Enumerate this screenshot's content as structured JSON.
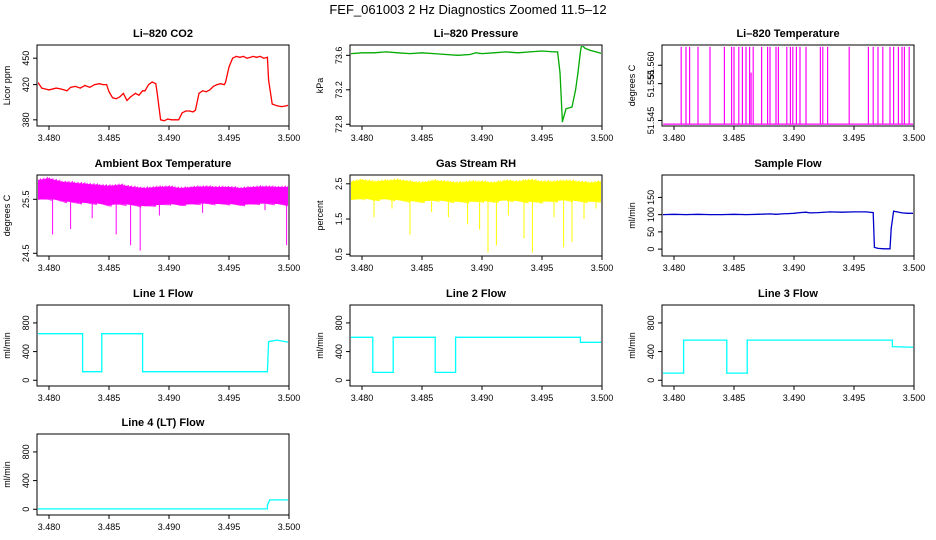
{
  "figure": {
    "title": "FEF_061003  2 Hz Diagnostics Zoomed 11.5–12"
  },
  "chart_data": [
    {
      "type": "line",
      "title": "Li–820 CO2",
      "ylabel": "Licor ppm",
      "color": "#ff0000",
      "xlim": [
        3.479,
        3.5
      ],
      "ylim": [
        373,
        465
      ],
      "xticks": [
        3.48,
        3.485,
        3.49,
        3.495,
        3.5
      ],
      "xtick_labels": [
        "3.480",
        "3.485",
        "3.490",
        "3.495",
        "3.500"
      ],
      "yticks": [
        380,
        420,
        450
      ],
      "ytick_labels": [
        "380",
        "420",
        "450"
      ],
      "series": [
        {
          "x": [
            3.4791,
            3.4794,
            3.48,
            3.4806,
            3.481,
            3.4815,
            3.4818,
            3.4822,
            3.4826,
            3.483,
            3.4834,
            3.4838,
            3.4842,
            3.4845,
            3.4848,
            3.485,
            3.4853,
            3.4856,
            3.4859,
            3.4862,
            3.4865,
            3.4868,
            3.4872,
            3.4875,
            3.4878,
            3.488,
            3.4883,
            3.4886,
            3.4889,
            3.489,
            3.4893,
            3.4896,
            3.4899,
            3.4902,
            3.4905,
            3.4908,
            3.4911,
            3.4914,
            3.4917,
            3.492,
            3.4922,
            3.4925,
            3.4928,
            3.4931,
            3.4934,
            3.4937,
            3.494,
            3.4943,
            3.4946,
            3.4947,
            3.495,
            3.4953,
            3.4956,
            3.4959,
            3.4962,
            3.4965,
            3.4968,
            3.497,
            3.4973,
            3.4976,
            3.4979,
            3.4982,
            3.4983,
            3.4986,
            3.499,
            3.4994,
            3.4998,
            3.5
          ],
          "y": [
            422,
            416,
            414,
            416,
            415,
            413,
            417,
            418,
            416,
            419,
            417,
            420,
            421,
            420,
            420,
            412,
            405,
            404,
            406,
            410,
            402,
            406,
            410,
            408,
            413,
            413,
            420,
            423,
            421,
            412,
            380,
            379,
            381,
            380,
            380,
            380,
            388,
            390,
            390,
            389,
            391,
            410,
            413,
            412,
            414,
            418,
            420,
            421,
            420,
            422,
            440,
            450,
            452,
            451,
            452,
            450,
            451,
            452,
            451,
            452,
            450,
            451,
            425,
            398,
            396,
            395,
            396,
            397
          ]
        }
      ]
    },
    {
      "type": "line",
      "title": "Li–820 Pressure",
      "ylabel": "kPa",
      "color": "#00aa00",
      "xlim": [
        3.479,
        3.5
      ],
      "ylim": [
        72.78,
        73.72
      ],
      "xticks": [
        3.48,
        3.485,
        3.49,
        3.495,
        3.5
      ],
      "xtick_labels": [
        "3.480",
        "3.485",
        "3.490",
        "3.495",
        "3.500"
      ],
      "yticks": [
        72.8,
        73.2,
        73.6
      ],
      "ytick_labels": [
        "72.8",
        "73.2",
        "73.6"
      ],
      "series": [
        {
          "x": [
            3.4791,
            3.48,
            3.481,
            3.482,
            3.483,
            3.484,
            3.485,
            3.486,
            3.487,
            3.488,
            3.489,
            3.4895,
            3.49,
            3.491,
            3.492,
            3.493,
            3.494,
            3.495,
            3.496,
            3.4963,
            3.4965,
            3.4967,
            3.4968,
            3.497,
            3.4975,
            3.4978,
            3.498,
            3.4982,
            3.4983,
            3.4986,
            3.499,
            3.4995,
            3.5
          ],
          "y": [
            73.62,
            73.63,
            73.63,
            73.64,
            73.63,
            73.62,
            73.63,
            73.62,
            73.61,
            73.6,
            73.61,
            73.63,
            73.62,
            73.63,
            73.64,
            73.63,
            73.64,
            73.65,
            73.64,
            73.64,
            73.4,
            72.83,
            72.88,
            72.98,
            73.0,
            73.2,
            73.4,
            73.64,
            73.72,
            73.68,
            73.66,
            73.64,
            73.62
          ]
        }
      ]
    },
    {
      "type": "line",
      "title": "Li–820 Temperature",
      "ylabel": "degrees C",
      "color": "#ff00ff",
      "xlim": [
        3.479,
        3.5
      ],
      "ylim": [
        51.5435,
        51.5655
      ],
      "xticks": [
        3.48,
        3.485,
        3.49,
        3.495,
        3.5
      ],
      "xtick_labels": [
        "3.480",
        "3.485",
        "3.490",
        "3.495",
        "3.500"
      ],
      "yticks": [
        51.545,
        51.555,
        51.56
      ],
      "ytick_labels": [
        "51.545",
        "51.555",
        "51.560"
      ],
      "baseline": 51.544,
      "spike_top": 51.565,
      "spikes": [
        3.4806,
        3.481,
        3.4813,
        3.482,
        3.483,
        3.4842,
        3.4848,
        3.485,
        3.4854,
        3.4857,
        3.486,
        3.4863,
        3.4866,
        3.4873,
        3.4878,
        3.488,
        3.4885,
        3.4887,
        3.4894,
        3.4897,
        3.4899,
        3.4902,
        3.4905,
        3.491,
        3.4922,
        3.4924,
        3.4928,
        3.4946,
        3.4962,
        3.4966,
        3.497,
        3.4974,
        3.498,
        3.4983,
        3.4987,
        3.499,
        3.4992,
        3.4996
      ],
      "partial_spikes": [
        3.4863
      ],
      "partial_top": 51.558
    },
    {
      "type": "line",
      "title": "Ambient Box Temperature",
      "ylabel": "degrees C",
      "color": "#ff00ff",
      "xlim": [
        3.479,
        3.5
      ],
      "ylim": [
        24.45,
        25.95
      ],
      "xticks": [
        3.48,
        3.485,
        3.49,
        3.495,
        3.5
      ],
      "xtick_labels": [
        "3.480",
        "3.485",
        "3.490",
        "3.495",
        "3.500"
      ],
      "yticks": [
        24.5,
        25.5
      ],
      "ytick_labels": [
        "24.5",
        "25.5"
      ],
      "band": {
        "x": [
          3.4791,
          3.48,
          3.481,
          3.482,
          3.483,
          3.484,
          3.485,
          3.486,
          3.487,
          3.488,
          3.489,
          3.49,
          3.491,
          3.492,
          3.493,
          3.494,
          3.495,
          3.496,
          3.497,
          3.498,
          3.499,
          3.5
        ],
        "lo": [
          25.5,
          25.52,
          25.48,
          25.45,
          25.44,
          25.43,
          25.4,
          25.42,
          25.4,
          25.38,
          25.4,
          25.42,
          25.4,
          25.42,
          25.43,
          25.42,
          25.42,
          25.4,
          25.42,
          25.43,
          25.42,
          25.4
        ],
        "hi": [
          25.85,
          25.88,
          25.82,
          25.8,
          25.78,
          25.76,
          25.74,
          25.76,
          25.72,
          25.7,
          25.72,
          25.73,
          25.7,
          25.72,
          25.73,
          25.72,
          25.72,
          25.7,
          25.72,
          25.73,
          25.72,
          25.72
        ]
      },
      "dips": [
        [
          3.4803,
          24.85
        ],
        [
          3.4818,
          24.95
        ],
        [
          3.4836,
          25.15
        ],
        [
          3.4856,
          24.85
        ],
        [
          3.4868,
          24.65
        ],
        [
          3.4876,
          24.55
        ],
        [
          3.4892,
          25.2
        ],
        [
          3.4928,
          25.25
        ],
        [
          3.498,
          25.3
        ],
        [
          3.4998,
          24.65
        ]
      ]
    },
    {
      "type": "line",
      "title": "Gas Stream RH",
      "ylabel": "percent",
      "color": "#ffff00",
      "xlim": [
        3.479,
        3.5
      ],
      "ylim": [
        0.45,
        2.75
      ],
      "xticks": [
        3.48,
        3.485,
        3.49,
        3.495,
        3.5
      ],
      "xtick_labels": [
        "3.480",
        "3.485",
        "3.490",
        "3.495",
        "3.500"
      ],
      "yticks": [
        0.5,
        1.5,
        2.5
      ],
      "ytick_labels": [
        "0.5",
        "1.5",
        "2.5"
      ],
      "band": {
        "x": [
          3.4791,
          3.48,
          3.481,
          3.482,
          3.483,
          3.484,
          3.485,
          3.486,
          3.487,
          3.488,
          3.489,
          3.49,
          3.491,
          3.492,
          3.493,
          3.494,
          3.495,
          3.496,
          3.497,
          3.498,
          3.499,
          3.5
        ],
        "lo": [
          2.05,
          2.1,
          2.05,
          2.08,
          2.05,
          2.02,
          2.0,
          2.05,
          2.02,
          2.0,
          2.0,
          2.02,
          2.0,
          2.05,
          2.02,
          2.0,
          2.0,
          2.02,
          2.05,
          2.02,
          2.0,
          2.02
        ],
        "hi": [
          2.55,
          2.6,
          2.55,
          2.58,
          2.6,
          2.55,
          2.52,
          2.58,
          2.55,
          2.52,
          2.55,
          2.55,
          2.52,
          2.58,
          2.55,
          2.6,
          2.55,
          2.55,
          2.58,
          2.55,
          2.52,
          2.55
        ]
      },
      "dips": [
        [
          3.481,
          1.55
        ],
        [
          3.4825,
          1.8
        ],
        [
          3.484,
          1.05
        ],
        [
          3.4858,
          1.7
        ],
        [
          3.4872,
          1.55
        ],
        [
          3.4888,
          1.35
        ],
        [
          3.4898,
          1.2
        ],
        [
          3.4905,
          0.55
        ],
        [
          3.4912,
          0.75
        ],
        [
          3.4922,
          1.6
        ],
        [
          3.4935,
          0.95
        ],
        [
          3.4942,
          0.55
        ],
        [
          3.496,
          1.55
        ],
        [
          3.4968,
          0.7
        ],
        [
          3.4975,
          0.85
        ],
        [
          3.4985,
          1.5
        ],
        [
          3.4995,
          1.8
        ]
      ]
    },
    {
      "type": "line",
      "title": "Sample Flow",
      "ylabel": "ml/min",
      "color": "#0000cc",
      "xlim": [
        3.479,
        3.5
      ],
      "ylim": [
        -20,
        215
      ],
      "xticks": [
        3.48,
        3.485,
        3.49,
        3.495,
        3.5
      ],
      "xtick_labels": [
        "3.480",
        "3.485",
        "3.490",
        "3.495",
        "3.500"
      ],
      "yticks": [
        0,
        50,
        100,
        150
      ],
      "ytick_labels": [
        "0",
        "50",
        "100",
        "150"
      ],
      "series": [
        {
          "x": [
            3.4791,
            3.48,
            3.481,
            3.482,
            3.483,
            3.484,
            3.485,
            3.486,
            3.487,
            3.488,
            3.4885,
            3.489,
            3.4895,
            3.49,
            3.4905,
            3.491,
            3.4913,
            3.492,
            3.493,
            3.494,
            3.495,
            3.496,
            3.4966,
            3.4967,
            3.497,
            3.4975,
            3.498,
            3.4981,
            3.4983,
            3.4986,
            3.499,
            3.4995,
            3.5
          ],
          "y": [
            100,
            101,
            100,
            101,
            100,
            100,
            101,
            100,
            101,
            102,
            101,
            102,
            103,
            104,
            106,
            107,
            105,
            106,
            108,
            107,
            108,
            108,
            106,
            5,
            2,
            1,
            1,
            60,
            110,
            108,
            105,
            104,
            104
          ]
        }
      ]
    },
    {
      "type": "line",
      "title": "Line 1 Flow",
      "ylabel": "ml/min",
      "color": "#00ffff",
      "xlim": [
        3.479,
        3.5
      ],
      "ylim": [
        -80,
        1050
      ],
      "xticks": [
        3.48,
        3.485,
        3.49,
        3.495,
        3.5
      ],
      "xtick_labels": [
        "3.480",
        "3.485",
        "3.490",
        "3.495",
        "3.500"
      ],
      "yticks": [
        0,
        400,
        800
      ],
      "ytick_labels": [
        "0",
        "400",
        "800"
      ],
      "series": [
        {
          "x": [
            3.4791,
            3.4828,
            3.4828,
            3.4844,
            3.4844,
            3.4878,
            3.4878,
            3.4982,
            3.4982,
            3.4983,
            3.499,
            3.5
          ],
          "y": [
            650,
            650,
            120,
            120,
            650,
            650,
            120,
            120,
            120,
            540,
            560,
            530
          ]
        }
      ]
    },
    {
      "type": "line",
      "title": "Line 2 Flow",
      "ylabel": "ml/min",
      "color": "#00ffff",
      "xlim": [
        3.479,
        3.5
      ],
      "ylim": [
        -80,
        1050
      ],
      "xticks": [
        3.48,
        3.485,
        3.49,
        3.495,
        3.5
      ],
      "xtick_labels": [
        "3.480",
        "3.485",
        "3.490",
        "3.495",
        "3.500"
      ],
      "yticks": [
        0,
        400,
        800
      ],
      "ytick_labels": [
        "0",
        "400",
        "800"
      ],
      "series": [
        {
          "x": [
            3.4791,
            3.4809,
            3.4809,
            3.4826,
            3.4826,
            3.4861,
            3.4861,
            3.4878,
            3.4878,
            3.4982,
            3.4982,
            3.5
          ],
          "y": [
            600,
            600,
            110,
            110,
            600,
            600,
            110,
            110,
            600,
            600,
            530,
            530
          ]
        }
      ]
    },
    {
      "type": "line",
      "title": "Line 3 Flow",
      "ylabel": "ml/min",
      "color": "#00ffff",
      "xlim": [
        3.479,
        3.5
      ],
      "ylim": [
        -80,
        1050
      ],
      "xticks": [
        3.48,
        3.485,
        3.49,
        3.495,
        3.5
      ],
      "xtick_labels": [
        "3.480",
        "3.485",
        "3.490",
        "3.495",
        "3.500"
      ],
      "yticks": [
        0,
        400,
        800
      ],
      "ytick_labels": [
        "0",
        "400",
        "800"
      ],
      "series": [
        {
          "x": [
            3.4791,
            3.4808,
            3.4808,
            3.4844,
            3.4844,
            3.4861,
            3.4861,
            3.4982,
            3.4982,
            3.5
          ],
          "y": [
            100,
            100,
            560,
            560,
            100,
            100,
            560,
            560,
            470,
            460
          ]
        }
      ]
    },
    {
      "type": "line",
      "title": "Line 4 (LT) Flow",
      "ylabel": "ml/min",
      "color": "#00ffff",
      "xlim": [
        3.479,
        3.5
      ],
      "ylim": [
        -80,
        1050
      ],
      "xticks": [
        3.48,
        3.485,
        3.49,
        3.495,
        3.5
      ],
      "xtick_labels": [
        "3.480",
        "3.485",
        "3.490",
        "3.495",
        "3.500"
      ],
      "yticks": [
        0,
        400,
        800
      ],
      "ytick_labels": [
        "0",
        "400",
        "800"
      ],
      "series": [
        {
          "x": [
            3.4791,
            3.4982,
            3.4982,
            3.4984,
            3.499,
            3.5
          ],
          "y": [
            5,
            5,
            60,
            130,
            130,
            130
          ]
        }
      ]
    }
  ]
}
